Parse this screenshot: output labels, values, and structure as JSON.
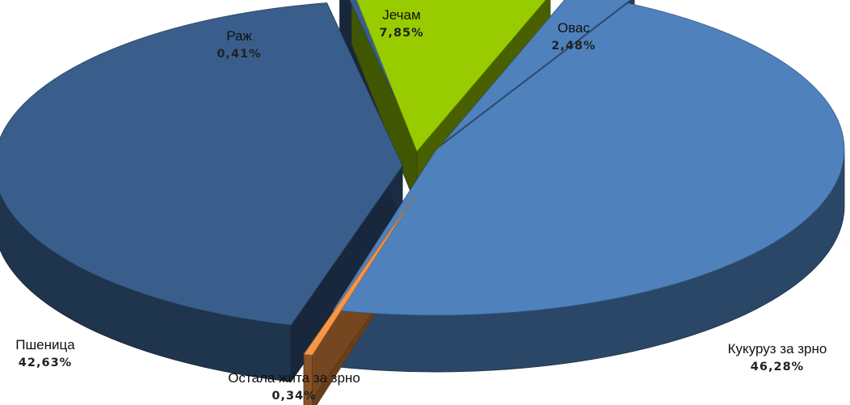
{
  "chart_data": {
    "type": "pie",
    "style": "3d-exploded",
    "legend": "none",
    "slices": [
      {
        "name": "Кукуруз за зрно",
        "value": 46.28,
        "label": "46,28%",
        "color": "#4f81bd"
      },
      {
        "name": "Остала жита за зрно",
        "value": 0.34,
        "label": "0,34%",
        "color": "#f79646"
      },
      {
        "name": "Пшеница",
        "value": 42.63,
        "label": "42,63%",
        "color": "#395e8c"
      },
      {
        "name": "Раж",
        "value": 0.41,
        "label": "0,41%",
        "color": "#395e8c"
      },
      {
        "name": "Јечам",
        "value": 7.85,
        "label": "7,85%",
        "color": "#99cc00"
      },
      {
        "name": "Овас",
        "value": 2.48,
        "label": "2,48%",
        "color": "#4f81bd"
      }
    ]
  }
}
